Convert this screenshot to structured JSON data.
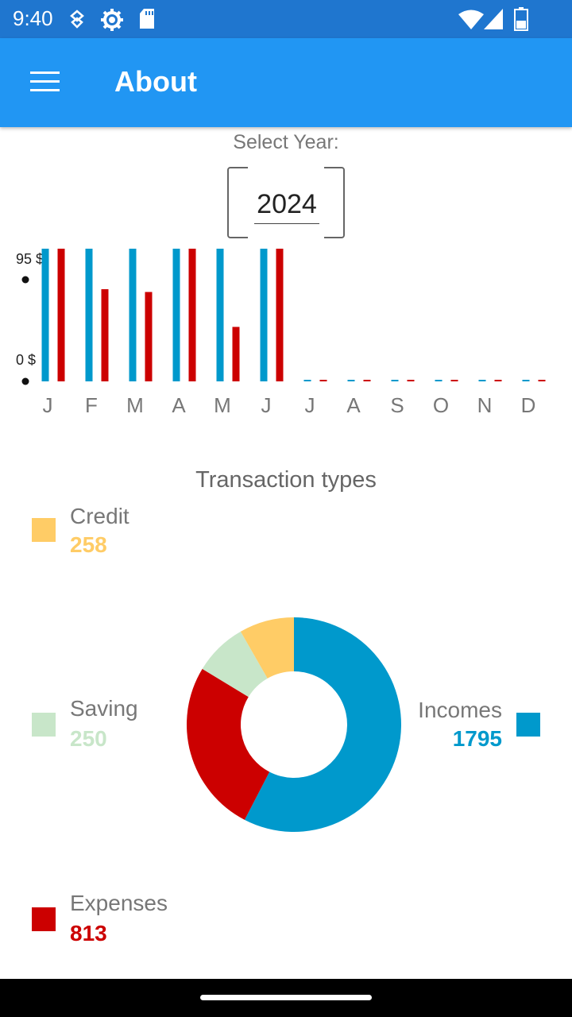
{
  "status_bar": {
    "time": "9:40",
    "icons": [
      "shield-key-icon",
      "gear-icon",
      "sd-card-icon",
      "wifi-icon",
      "cell-signal-icon",
      "battery-icon"
    ]
  },
  "app_bar": {
    "title": "About",
    "menu_icon": "hamburger-menu-icon"
  },
  "year_selector": {
    "label": "Select Year:",
    "value": "2024"
  },
  "monthly_chart": {
    "y_axis_labels": [
      "95 $",
      "0 $"
    ]
  },
  "transaction_types": {
    "title": "Transaction types",
    "legend": [
      {
        "name": "Credit",
        "value": "258",
        "color": "#ffcc66"
      },
      {
        "name": "Saving",
        "value": "250",
        "color": "#c8e6c9"
      },
      {
        "name": "Incomes",
        "value": "1795",
        "color": "#0099cc"
      },
      {
        "name": "Expenses",
        "value": "813",
        "color": "#cc0000"
      }
    ]
  },
  "chart_data": [
    {
      "type": "bar",
      "categories": [
        "J",
        "F",
        "M",
        "A",
        "M",
        "J",
        "J",
        "A",
        "S",
        "O",
        "N",
        "D"
      ],
      "series": [
        {
          "color": "#0099cc",
          "values": [
            95,
            95,
            95,
            95,
            95,
            95,
            0,
            0,
            0,
            0,
            0,
            0
          ]
        },
        {
          "color": "#cc0000",
          "values": [
            95,
            66,
            64,
            95,
            39,
            95,
            0,
            0,
            0,
            0,
            0,
            0
          ]
        }
      ],
      "ylim": [
        0,
        95
      ],
      "ytick_labels": [
        "95 $",
        "0 $"
      ],
      "grid": false
    },
    {
      "type": "pie",
      "donut": true,
      "title": "Transaction types",
      "labels": [
        "Incomes",
        "Expenses",
        "Saving",
        "Credit"
      ],
      "values": [
        1795,
        813,
        250,
        258
      ],
      "colors": [
        "#0099cc",
        "#cc0000",
        "#c8e6c9",
        "#ffcc66"
      ]
    }
  ]
}
